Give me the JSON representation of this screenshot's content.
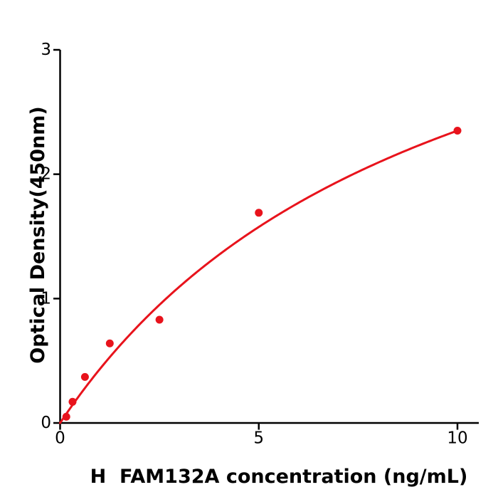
{
  "chart_data": {
    "type": "scatter",
    "title": "",
    "xlabel": "H  FAM132A concentration (ng/mL)",
    "ylabel": "Optical Density(450nm)",
    "xlim": [
      0,
      10.55
    ],
    "ylim": [
      0,
      3
    ],
    "x_ticks": [
      0,
      5,
      10
    ],
    "y_ticks": [
      0,
      1,
      2,
      3
    ],
    "grid": false,
    "legend": "none",
    "series": [
      {
        "name": "standard curve data points",
        "marker": "circle",
        "x": [
          0.156,
          0.313,
          0.625,
          1.25,
          2.5,
          5,
          10
        ],
        "y": [
          0.05,
          0.17,
          0.37,
          0.64,
          0.83,
          1.69,
          2.35
        ]
      }
    ],
    "fit_curve": {
      "model": "michaelis_menten",
      "formula": "y = vmax * x / (km + x)",
      "vmax": 4.62,
      "km": 9.66,
      "x_range": [
        0,
        10
      ]
    },
    "colors": {
      "data": "#e8131c",
      "axis": "#000000",
      "text": "#000000",
      "background": "#ffffff"
    }
  }
}
